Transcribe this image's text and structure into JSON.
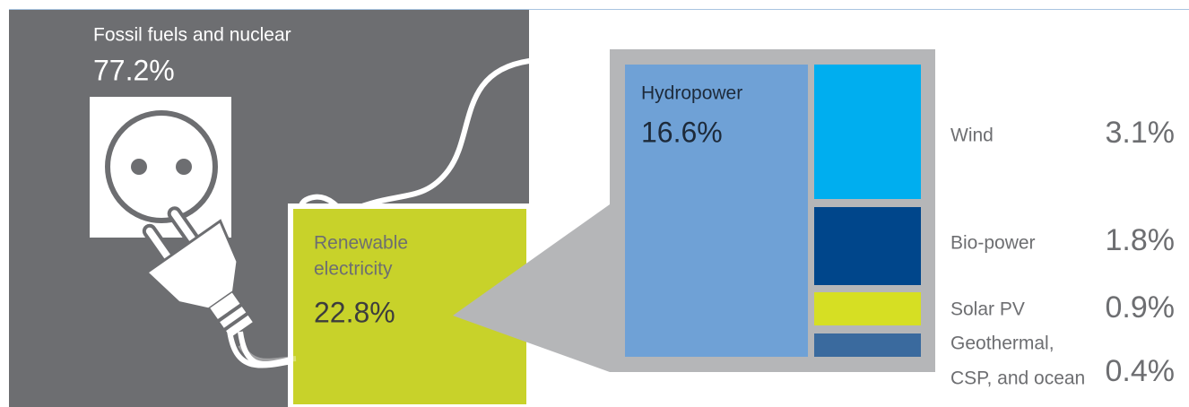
{
  "left": {
    "title": "Fossil fuels and nuclear",
    "value": "77.2%"
  },
  "renewable": {
    "label_lines": [
      "Renewable",
      "electricity"
    ],
    "value": "22.8%"
  },
  "hydropower": {
    "label": "Hydropower",
    "value": "16.6%"
  },
  "sources": [
    {
      "label_lines": [
        "Wind"
      ],
      "value": "3.1%"
    },
    {
      "label_lines": [
        "Bio-power"
      ],
      "value": "1.8%"
    },
    {
      "label_lines": [
        "Solar PV"
      ],
      "value": "0.9%"
    },
    {
      "label_lines": [
        "Geothermal,",
        "CSP, and ocean"
      ],
      "value": "0.4%"
    }
  ]
}
